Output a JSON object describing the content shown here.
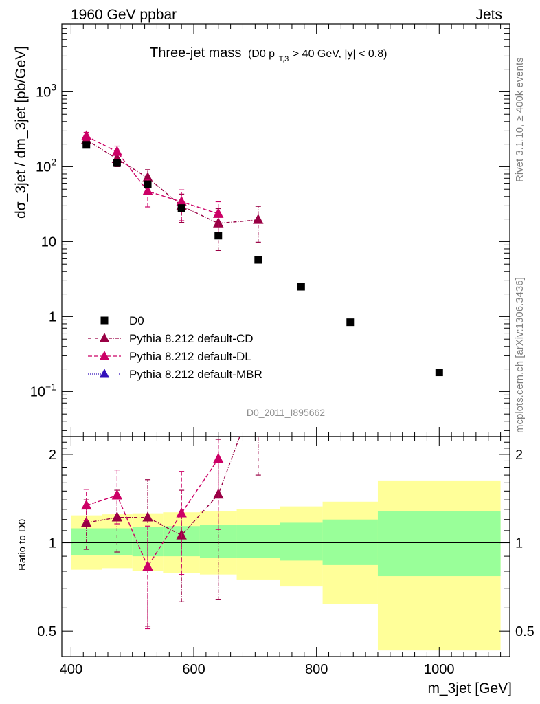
{
  "header": {
    "energy_label": "1960 GeV ppbar",
    "process_label": "Jets"
  },
  "plot_title": {
    "main": "Three-jet mass",
    "cut_prefix": "(D0 p",
    "cut_sub": "T,3",
    "cut_suffix": " > 40 GeV, |y| < 0.8)"
  },
  "side_labels": {
    "rivet": "Rivet 3.1.10, ≥ 400k events",
    "mcplots": "mcplots.cern.ch [arXiv:1306.3436]"
  },
  "analysis_id": "D0_2011_I895662",
  "chart_data": {
    "type": "scatter",
    "title": "Three-jet mass",
    "xlabel": "m_3jet [GeV]",
    "ylabel": "dσ_3jet / dm_3jet [pb/GeV]",
    "ratio_ylabel": "Ratio to D0",
    "xlim": [
      385,
      1115
    ],
    "ylim": [
      0.025,
      8000
    ],
    "yscale": "log",
    "ratio_ylim": [
      0.41,
      2.3
    ],
    "x_ticks": [
      400,
      600,
      800,
      1000
    ],
    "y_ticks": [
      {
        "value": 1000,
        "base": "10",
        "exp": "3"
      },
      {
        "value": 100,
        "base": "10",
        "exp": "2"
      },
      {
        "value": 10,
        "base": "10",
        "exp": ""
      },
      {
        "value": 1,
        "base": "1",
        "exp": ""
      },
      {
        "value": 0.1,
        "base": "10",
        "exp": "−1"
      }
    ],
    "ratio_ticks": [
      {
        "value": 0.5,
        "label": "0.5"
      },
      {
        "value": 1,
        "label": "1"
      },
      {
        "value": 2,
        "label": "2"
      }
    ],
    "data": {
      "name": "D0",
      "x": [
        425,
        475,
        525,
        580,
        640,
        705,
        775,
        855,
        1000
      ],
      "y": [
        195,
        112,
        58,
        28,
        12,
        5.7,
        2.5,
        0.84,
        0.18
      ],
      "bins": [
        [
          400,
          450
        ],
        [
          450,
          500
        ],
        [
          500,
          550
        ],
        [
          550,
          610
        ],
        [
          610,
          670
        ],
        [
          670,
          740
        ],
        [
          740,
          810
        ],
        [
          810,
          900
        ],
        [
          900,
          1100
        ]
      ],
      "band_inner": [
        [
          0.91,
          1.12
        ],
        [
          0.91,
          1.12
        ],
        [
          0.9,
          1.13
        ],
        [
          0.9,
          1.14
        ],
        [
          0.89,
          1.15
        ],
        [
          0.89,
          1.15
        ],
        [
          0.87,
          1.17
        ],
        [
          0.84,
          1.2
        ],
        [
          0.77,
          1.28
        ]
      ],
      "band_outer": [
        [
          0.81,
          1.24
        ],
        [
          0.82,
          1.25
        ],
        [
          0.8,
          1.26
        ],
        [
          0.79,
          1.27
        ],
        [
          0.78,
          1.28
        ],
        [
          0.75,
          1.3
        ],
        [
          0.71,
          1.33
        ],
        [
          0.62,
          1.38
        ],
        [
          0.43,
          1.63
        ]
      ]
    },
    "series": [
      {
        "name": "Pythia 8.212 default-CD",
        "color": "#990044",
        "dash": "5,2,1,2",
        "x": [
          425,
          475,
          525,
          580,
          640,
          705
        ],
        "y": [
          228,
          127,
          71,
          30,
          17.5,
          19.5
        ],
        "err": [
          [
            195,
            262
          ],
          [
            100,
            157
          ],
          [
            52,
            91
          ],
          [
            18,
            43
          ],
          [
            7.6,
            27.5
          ],
          [
            9.8,
            29.5
          ]
        ],
        "ratio": [
          1.17,
          1.22,
          1.22,
          1.06,
          1.46,
          3.4
        ],
        "ratio_err": [
          [
            0.95,
            1.4
          ],
          [
            0.93,
            1.51
          ],
          [
            0.52,
            1.64
          ],
          [
            0.63,
            1.51
          ],
          [
            0.64,
            2.25
          ],
          [
            1.7,
            5.0
          ]
        ]
      },
      {
        "name": "Pythia 8.212 default-DL",
        "color": "#cc0066",
        "dash": "6,3",
        "x": [
          425,
          475,
          525,
          580,
          640
        ],
        "y": [
          255,
          158,
          47,
          34,
          23.5
        ],
        "err": [
          [
            225,
            287
          ],
          [
            126,
            188
          ],
          [
            29,
            67
          ],
          [
            19,
            49
          ],
          [
            13,
            34
          ]
        ],
        "ratio": [
          1.34,
          1.45,
          0.83,
          1.26,
          1.93
        ],
        "ratio_err": [
          [
            1.19,
            1.52
          ],
          [
            1.16,
            1.77
          ],
          [
            0.51,
            1.14
          ],
          [
            0.78,
            1.75
          ],
          [
            1.11,
            2.8
          ]
        ]
      },
      {
        "name": "Pythia 8.212 default-MBR",
        "color": "#3311bb",
        "dash": "1,2",
        "x": [],
        "y": [],
        "err": [],
        "ratio": [],
        "ratio_err": []
      }
    ]
  },
  "colors": {
    "band_inner": "#99ff99",
    "band_outer": "#ffff99",
    "data_marker": "#000000",
    "side_text": "#808080",
    "analysis_text": "#909090"
  }
}
